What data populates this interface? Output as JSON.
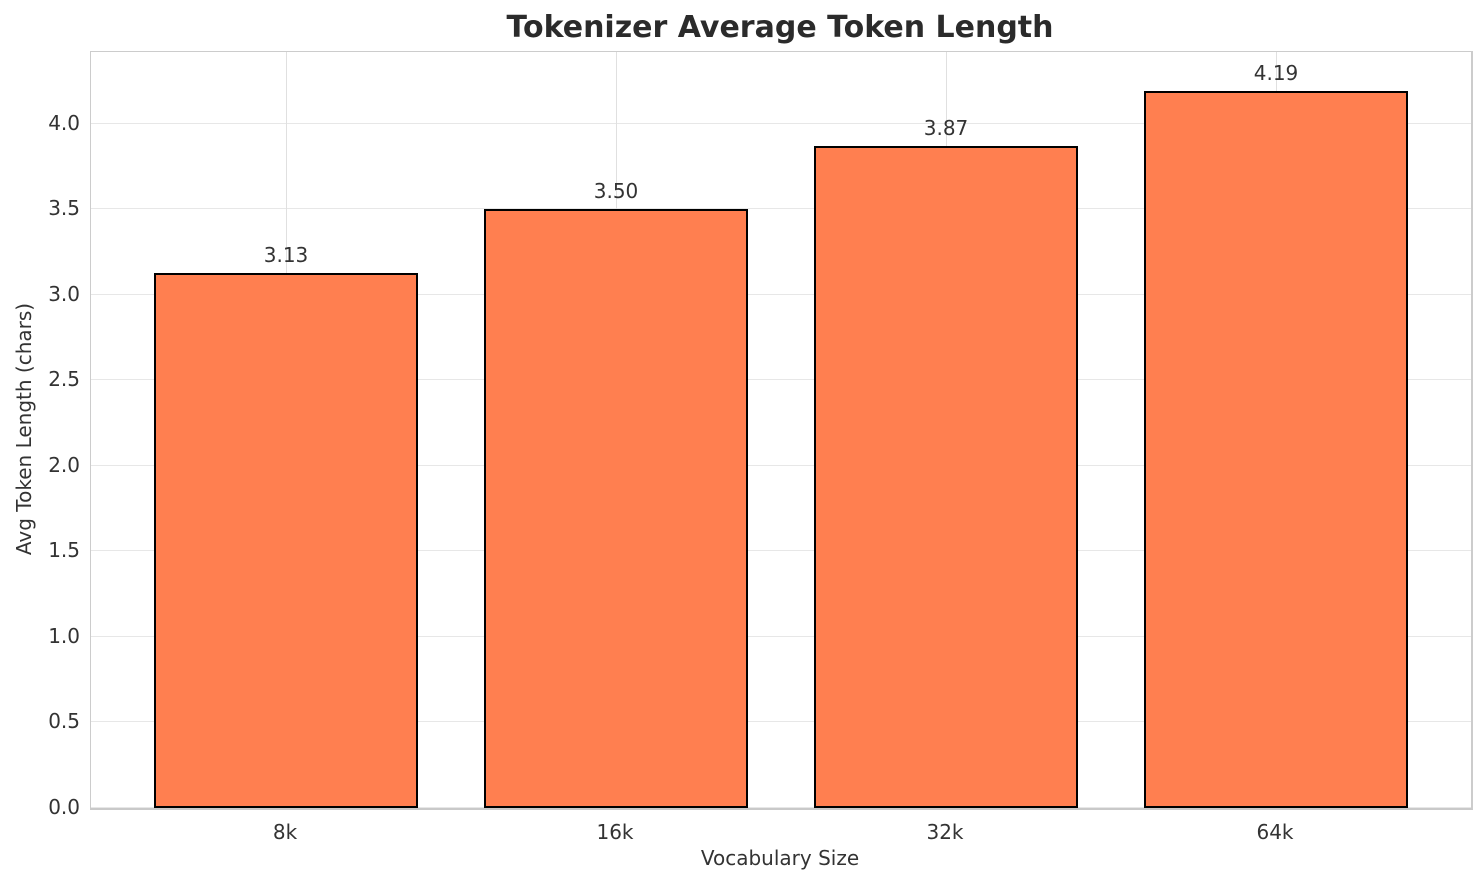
{
  "chart_data": {
    "type": "bar",
    "title": "Tokenizer Average Token Length",
    "xlabel": "Vocabulary Size",
    "ylabel": "Avg Token Length (chars)",
    "categories": [
      "8k",
      "16k",
      "32k",
      "64k"
    ],
    "values": [
      3.13,
      3.5,
      3.87,
      4.19
    ],
    "value_labels": [
      "3.13",
      "3.50",
      "3.87",
      "4.19"
    ],
    "yticks": [
      0.0,
      0.5,
      1.0,
      1.5,
      2.0,
      2.5,
      3.0,
      3.5,
      4.0
    ],
    "ytick_labels": [
      "0.0",
      "0.5",
      "1.0",
      "1.5",
      "2.0",
      "2.5",
      "3.0",
      "3.5",
      "4.0"
    ],
    "ylim": [
      0,
      4.42
    ],
    "grid": true,
    "legend_position": "none",
    "colors": {
      "bar_fill": "#FF7F50",
      "bar_edge": "#000000",
      "grid_h": "#e7e7e7",
      "grid_v": "#e0e0e0",
      "spine": "#cccccc",
      "text": "#333333",
      "title": "#2b2b2b",
      "background": "#ffffff"
    }
  }
}
